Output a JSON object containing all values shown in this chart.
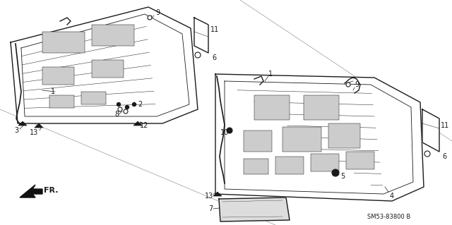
{
  "bg_color": "#ffffff",
  "line_color": "#1a1a1a",
  "diagram_code": "SM53-83800 B",
  "lw_outer": 1.0,
  "lw_inner": 0.6,
  "lw_detail": 0.5
}
